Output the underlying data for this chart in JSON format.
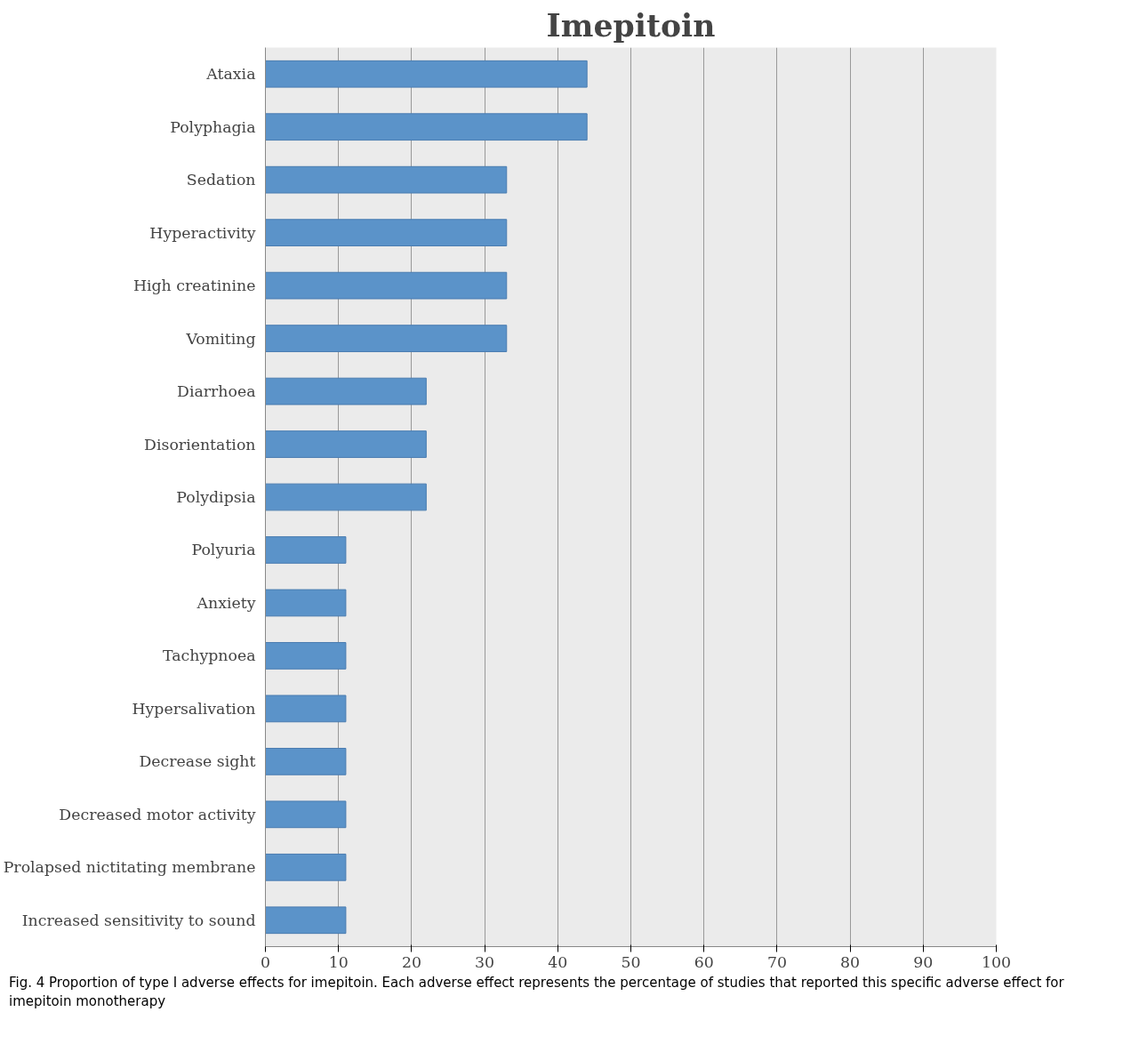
{
  "chart_data": {
    "type": "bar",
    "orientation": "horizontal",
    "title": "Imepitoin",
    "categories": [
      "Ataxia",
      "Polyphagia",
      "Sedation",
      "Hyperactivity",
      "High creatinine",
      "Vomiting",
      "Diarrhoea",
      "Disorientation",
      "Polydipsia",
      "Polyuria",
      "Anxiety",
      "Tachypnoea",
      "Hypersalivation",
      "Decrease sight",
      "Decreased motor activity",
      "Prolapsed nictitating membrane",
      "Increased sensitivity to sound"
    ],
    "values": [
      44,
      44,
      33,
      33,
      33,
      33,
      22,
      22,
      22,
      11,
      11,
      11,
      11,
      11,
      11,
      11,
      11
    ],
    "color": "#5b93c9",
    "xlim": [
      0,
      100
    ],
    "xticks": [
      0,
      10,
      20,
      30,
      40,
      50,
      60,
      70,
      80,
      90,
      100
    ],
    "grid": "x",
    "annotations": [
      "Fig. 4 Proportion of type I adverse effects for imepitoin. Each adverse effect represents the percentage of studies that reported this specific adverse effect for imepitoin monotherapy"
    ]
  }
}
